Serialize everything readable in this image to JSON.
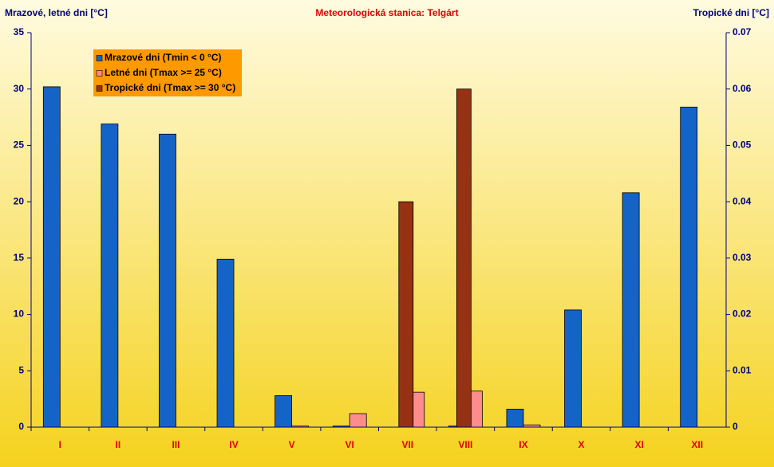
{
  "chart_data": {
    "type": "bar",
    "title": "Meteorologická stanica: Telgárt",
    "y_label": "Mrazové, letné dni [°C]",
    "y2_label": "Tropické dni [°C]",
    "categories": [
      "I",
      "II",
      "III",
      "IV",
      "V",
      "VI",
      "VII",
      "VIII",
      "IX",
      "X",
      "XI",
      "XII"
    ],
    "series": [
      {
        "name": "Mrazové dni (Tmin < 0 °C)",
        "color": "#1464c8",
        "values": [
          30.2,
          26.9,
          26.0,
          14.9,
          2.8,
          0.1,
          0,
          0.1,
          1.6,
          10.4,
          20.8,
          28.4
        ]
      },
      {
        "name": "Letné dni (Tmax >= 25 °C)",
        "color": "#ff8c8c",
        "values": [
          0,
          0,
          0,
          0,
          0.1,
          1.2,
          3.1,
          3.2,
          0.2,
          0,
          0,
          0
        ]
      },
      {
        "name": "Tropické dni (Tmax >= 30 °C)",
        "color": "#963214",
        "axis": "y2",
        "values": [
          0,
          0,
          0,
          0,
          0,
          0,
          0.04,
          0.06,
          0,
          0,
          0,
          0
        ]
      }
    ],
    "ylim": [
      0,
      35
    ],
    "yticks": [
      0,
      5,
      10,
      15,
      20,
      25,
      30,
      35
    ],
    "y2lim": [
      0,
      0.07
    ],
    "y2ticks": [
      0,
      0.01,
      0.02,
      0.03,
      0.04,
      0.05,
      0.06,
      0.07
    ],
    "grid": false,
    "legend": "top-left"
  }
}
